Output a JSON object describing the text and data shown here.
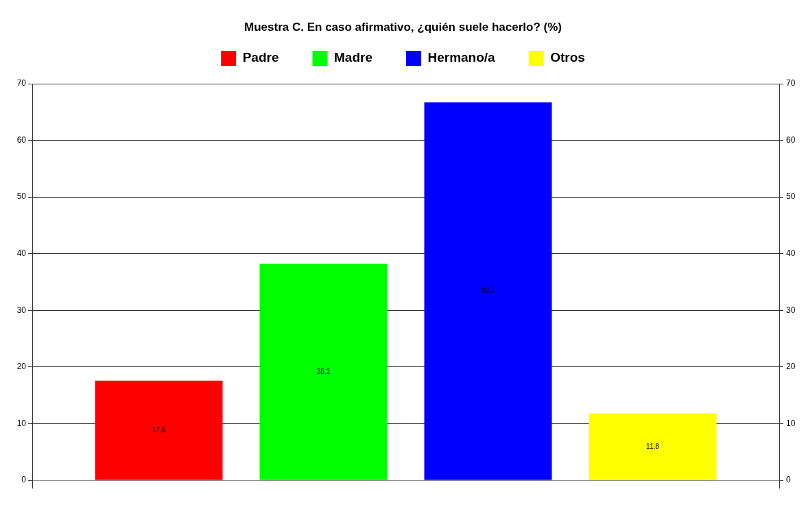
{
  "chart_data": {
    "type": "bar",
    "title": "Muestra C. En caso afirmativo, ¿quién suele hacerlo? (%)",
    "categories": [
      null
    ],
    "series": [
      {
        "name": "Padre",
        "color": "#ff0000",
        "values": [
          17.6
        ],
        "value_labels": [
          "17,6"
        ]
      },
      {
        "name": "Madre",
        "color": "#00ff00",
        "values": [
          38.2
        ],
        "value_labels": [
          "38,2"
        ]
      },
      {
        "name": "Hermano/a",
        "color": "#0000ff",
        "values": [
          66.7
        ],
        "value_labels": [
          "66,7"
        ]
      },
      {
        "name": "Otros",
        "color": "#ffff00",
        "values": [
          11.8
        ],
        "value_labels": [
          "11,8"
        ]
      }
    ],
    "ylim": [
      0,
      70
    ],
    "yticks": [
      0,
      10,
      20,
      30,
      40,
      50,
      60,
      70
    ],
    "y2lim": [
      0,
      70
    ],
    "y2ticks": [
      0,
      10,
      20,
      30,
      40,
      50,
      60,
      70
    ],
    "grid": "y",
    "legend": "top"
  }
}
